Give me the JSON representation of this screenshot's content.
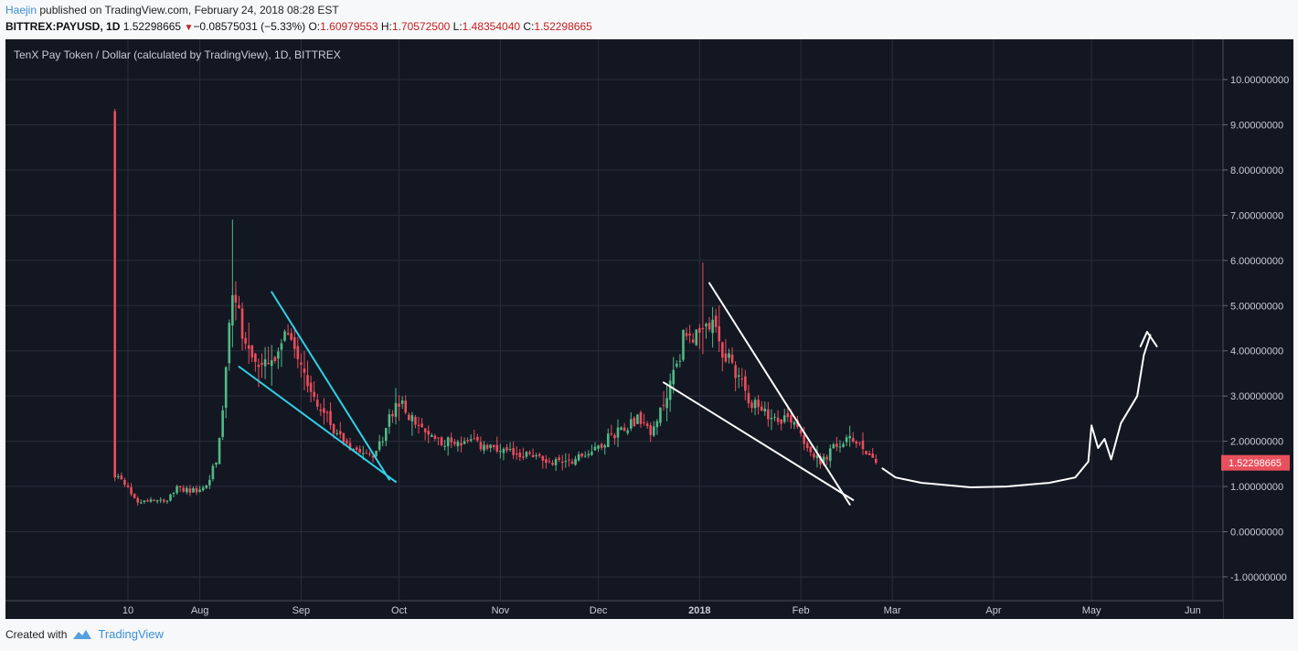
{
  "header": {
    "author": "Haejin",
    "published_text": " published on TradingView.com, February 24, 2018 08:28 EST"
  },
  "ohlc_bar": {
    "symbol": "BITTREX:PAYUSD, 1D",
    "last": "1.52298665",
    "change_arrow": "▼",
    "change": "−0.08575031 (−5.33%)",
    "open_label": "O:",
    "open": "1.60979553",
    "high_label": "H:",
    "high": "1.70572500",
    "low_label": "L:",
    "low": "1.48354040",
    "close_label": "C:",
    "close": "1.52298665"
  },
  "chart_title": "TenX Pay Token / Dollar (calculated by TradingView), 1D, BITTREX",
  "price_tag": "1.52298665",
  "footer": {
    "created_with": "Created with",
    "brand": "TradingView"
  },
  "colors": {
    "background": "#131722",
    "grid": "#2a2e39",
    "up": "#53b987",
    "down": "#eb4d5c",
    "trendline_cyan": "#2fd1e8",
    "trendline_white": "#ffffff",
    "price_tag": "#e8505b"
  },
  "chart_data": {
    "type": "candlestick",
    "title": "TenX Pay Token / Dollar (calculated by TradingView), 1D, BITTREX",
    "y_axis": {
      "range": [
        -1.3,
        10.6
      ],
      "ticks": [
        "10.00000000",
        "9.00000000",
        "8.00000000",
        "7.00000000",
        "6.00000000",
        "5.00000000",
        "4.00000000",
        "3.00000000",
        "2.00000000",
        "1.00000000",
        "0.00000000",
        "-1.00000000"
      ]
    },
    "x_axis": {
      "ticks": [
        {
          "label": "10",
          "date": "2017-07-10",
          "bold": false
        },
        {
          "label": "Aug",
          "date": "2017-08-01",
          "bold": false
        },
        {
          "label": "Sep",
          "date": "2017-09-01",
          "bold": false
        },
        {
          "label": "Oct",
          "date": "2017-10-01",
          "bold": false
        },
        {
          "label": "Nov",
          "date": "2017-11-01",
          "bold": false
        },
        {
          "label": "Dec",
          "date": "2017-12-01",
          "bold": false
        },
        {
          "label": "2018",
          "date": "2018-01-01",
          "bold": true
        },
        {
          "label": "Feb",
          "date": "2018-02-01",
          "bold": false
        },
        {
          "label": "Mar",
          "date": "2018-03-01",
          "bold": false
        },
        {
          "label": "Apr",
          "date": "2018-04-01",
          "bold": false
        },
        {
          "label": "May",
          "date": "2018-05-01",
          "bold": false
        },
        {
          "label": "Jun",
          "date": "2018-06-01",
          "bold": false
        }
      ]
    },
    "grid": true,
    "last_price": 1.52298665,
    "price_path": [
      [
        "2017-07-06",
        9.3
      ],
      [
        "2017-07-07",
        1.2
      ],
      [
        "2017-07-10",
        0.95
      ],
      [
        "2017-07-13",
        0.65
      ],
      [
        "2017-07-17",
        0.72
      ],
      [
        "2017-07-22",
        0.7
      ],
      [
        "2017-07-25",
        0.95
      ],
      [
        "2017-07-31",
        0.9
      ],
      [
        "2017-08-03",
        1.0
      ],
      [
        "2017-08-06",
        1.6
      ],
      [
        "2017-08-08",
        2.6
      ],
      [
        "2017-08-10",
        4.7
      ],
      [
        "2017-08-12",
        5.2
      ],
      [
        "2017-08-15",
        4.1
      ],
      [
        "2017-08-20",
        3.6
      ],
      [
        "2017-08-25",
        3.8
      ],
      [
        "2017-08-28",
        4.5
      ],
      [
        "2017-08-31",
        4.0
      ],
      [
        "2017-09-04",
        3.1
      ],
      [
        "2017-09-08",
        2.6
      ],
      [
        "2017-09-12",
        2.2
      ],
      [
        "2017-09-16",
        1.9
      ],
      [
        "2017-09-21",
        1.8
      ],
      [
        "2017-09-24",
        1.7
      ],
      [
        "2017-09-27",
        2.3
      ],
      [
        "2017-09-30",
        2.85
      ],
      [
        "2017-10-03",
        2.7
      ],
      [
        "2017-10-08",
        2.2
      ],
      [
        "2017-10-15",
        2.0
      ],
      [
        "2017-10-24",
        1.95
      ],
      [
        "2017-11-01",
        1.75
      ],
      [
        "2017-11-10",
        1.7
      ],
      [
        "2017-11-16",
        1.55
      ],
      [
        "2017-11-24",
        1.6
      ],
      [
        "2017-12-01",
        1.9
      ],
      [
        "2017-12-08",
        2.3
      ],
      [
        "2017-12-13",
        2.5
      ],
      [
        "2017-12-18",
        2.2
      ],
      [
        "2017-12-24",
        3.5
      ],
      [
        "2017-12-28",
        4.5
      ],
      [
        "2018-01-01",
        4.2
      ],
      [
        "2018-01-04",
        4.6
      ],
      [
        "2018-01-08",
        4.0
      ],
      [
        "2018-01-12",
        3.6
      ],
      [
        "2018-01-16",
        3.0
      ],
      [
        "2018-01-20",
        2.6
      ],
      [
        "2018-01-25",
        2.55
      ],
      [
        "2018-01-30",
        2.5
      ],
      [
        "2018-02-03",
        1.9
      ],
      [
        "2018-02-07",
        1.5
      ],
      [
        "2018-02-11",
        1.85
      ],
      [
        "2018-02-15",
        2.0
      ],
      [
        "2018-02-18",
        2.05
      ],
      [
        "2018-02-21",
        1.8
      ],
      [
        "2018-02-24",
        1.52
      ]
    ],
    "drawings": [
      {
        "name": "cyan-lower-trendline",
        "color": "#2fd1e8",
        "points": [
          [
            "2017-08-13",
            3.65
          ],
          [
            "2017-09-30",
            1.1
          ]
        ]
      },
      {
        "name": "cyan-upper-trendline",
        "color": "#2fd1e8",
        "points": [
          [
            "2017-08-23",
            5.3
          ],
          [
            "2017-09-28",
            1.15
          ]
        ]
      },
      {
        "name": "white-lower-trendline",
        "color": "#ffffff",
        "points": [
          [
            "2017-12-21",
            3.3
          ],
          [
            "2018-02-17",
            0.7
          ]
        ]
      },
      {
        "name": "white-upper-trendline",
        "color": "#ffffff",
        "points": [
          [
            "2018-01-04",
            5.5
          ],
          [
            "2018-02-16",
            0.6
          ]
        ]
      },
      {
        "name": "projection-curve",
        "color": "#ffffff",
        "points": [
          [
            "2018-02-26",
            1.4
          ],
          [
            "2018-03-02",
            1.2
          ],
          [
            "2018-03-10",
            1.08
          ],
          [
            "2018-03-25",
            0.98
          ],
          [
            "2018-04-05",
            1.0
          ],
          [
            "2018-04-18",
            1.08
          ],
          [
            "2018-04-26",
            1.2
          ],
          [
            "2018-04-30",
            1.55
          ],
          [
            "2018-05-01",
            2.35
          ],
          [
            "2018-05-03",
            1.85
          ],
          [
            "2018-05-05",
            2.05
          ],
          [
            "2018-05-07",
            1.6
          ],
          [
            "2018-05-10",
            2.4
          ],
          [
            "2018-05-15",
            3.0
          ],
          [
            "2018-05-17",
            3.9
          ],
          [
            "2018-05-19",
            4.35
          ]
        ]
      },
      {
        "name": "projection-arrowhead",
        "color": "#ffffff",
        "points": [
          [
            "2018-05-16",
            4.1
          ],
          [
            "2018-05-18",
            4.42
          ],
          [
            "2018-05-21",
            4.1
          ]
        ]
      }
    ]
  }
}
